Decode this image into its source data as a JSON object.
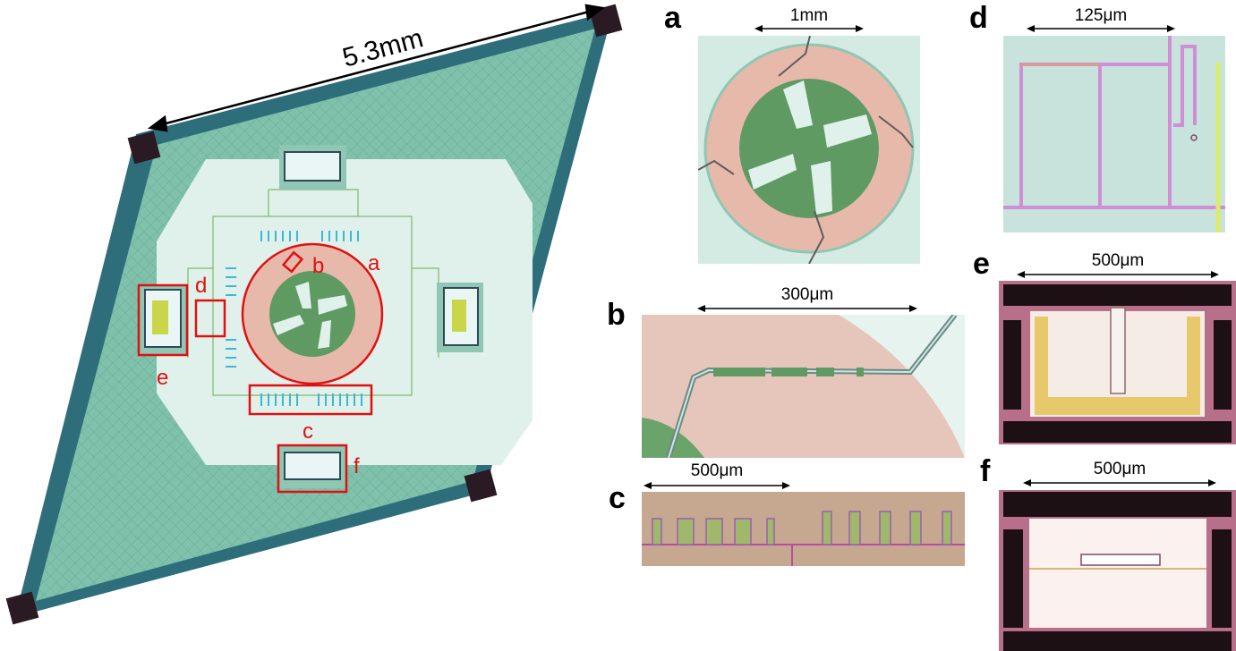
{
  "main": {
    "dimension_label": "5.3mm",
    "callouts": [
      "a",
      "b",
      "c",
      "d",
      "e",
      "f"
    ]
  },
  "panels": [
    {
      "id": "a",
      "label": "a",
      "scale": "1mm"
    },
    {
      "id": "b",
      "label": "b",
      "scale": "300μm"
    },
    {
      "id": "c",
      "label": "c",
      "scale": "500μm"
    },
    {
      "id": "d",
      "label": "d",
      "scale": "125μm"
    },
    {
      "id": "e",
      "label": "e",
      "scale": "500μm"
    },
    {
      "id": "f",
      "label": "f",
      "scale": "500μm"
    }
  ],
  "colors": {
    "frame": "#2f6f7d",
    "membrane": "#7dbfa9",
    "center": "#dff1ea",
    "ring": "#e7b9ab",
    "disk": "#5f9a63",
    "callout": "#e01010",
    "pad": "#2a1a24"
  }
}
